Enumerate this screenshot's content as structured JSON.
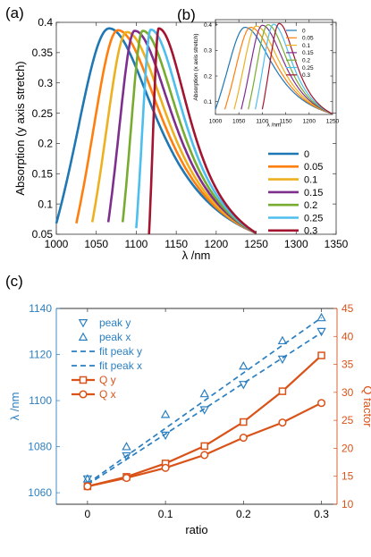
{
  "chart_data": [
    {
      "id": "a",
      "panel_label": "(a)",
      "type": "line",
      "title": "",
      "xlabel": "λ /nm",
      "ylabel": "Absorption (y axis stretch)",
      "xlim": [
        1000,
        1350
      ],
      "ylim": [
        0.05,
        0.4
      ],
      "xticks": [
        1000,
        1050,
        1100,
        1150,
        1200,
        1250,
        1300,
        1350
      ],
      "yticks": [
        0.05,
        0.1,
        0.15,
        0.2,
        0.25,
        0.3,
        0.35,
        0.4
      ],
      "ytick_labels": [
        "0.05",
        "0.1",
        "0.15",
        "0.2",
        "0.25",
        "0.3",
        "0.35",
        "0.4"
      ],
      "legend_position": "right",
      "grid": false,
      "series": [
        {
          "name": "0",
          "color": "#1f77b4",
          "peak_x": 1066,
          "peak_y": 0.39,
          "start_x": 1000,
          "start_y": 0.068,
          "end_x": 1250,
          "end_y": 0.052
        },
        {
          "name": "0.05",
          "color": "#ff7f0e",
          "peak_x": 1077,
          "peak_y": 0.387,
          "start_x": 1025,
          "start_y": 0.068,
          "end_x": 1250,
          "end_y": 0.052
        },
        {
          "name": "0.1",
          "color": "#edb120",
          "peak_x": 1088,
          "peak_y": 0.384,
          "start_x": 1045,
          "start_y": 0.07,
          "end_x": 1250,
          "end_y": 0.052
        },
        {
          "name": "0.15",
          "color": "#7e2f8e",
          "peak_x": 1098,
          "peak_y": 0.386,
          "start_x": 1065,
          "start_y": 0.07,
          "end_x": 1250,
          "end_y": 0.052
        },
        {
          "name": "0.2",
          "color": "#77ac30",
          "peak_x": 1108,
          "peak_y": 0.386,
          "start_x": 1083,
          "start_y": 0.07,
          "end_x": 1250,
          "end_y": 0.052
        },
        {
          "name": "0.25",
          "color": "#4dbeee",
          "peak_x": 1118,
          "peak_y": 0.388,
          "start_x": 1100,
          "start_y": 0.06,
          "end_x": 1250,
          "end_y": 0.052
        },
        {
          "name": "0.3",
          "color": "#a2142f",
          "peak_x": 1128,
          "peak_y": 0.39,
          "start_x": 1116,
          "start_y": 0.05,
          "end_x": 1250,
          "end_y": 0.052
        }
      ]
    },
    {
      "id": "b",
      "panel_label": "(b)",
      "type": "line",
      "title": "",
      "xlabel": "λ /nm",
      "ylabel": "Absorption (x axis stretch)",
      "xlim": [
        1000,
        1250
      ],
      "ylim": [
        0.05,
        0.42
      ],
      "xticks": [
        1000,
        1050,
        1100,
        1150,
        1200,
        1250
      ],
      "yticks": [
        0.1,
        0.2,
        0.3,
        0.4
      ],
      "ytick_labels": [
        "0.1",
        "0.2",
        "0.3",
        "0.4"
      ],
      "legend_position": "right",
      "grid": false,
      "series": [
        {
          "name": "0",
          "color": "#1f77b4",
          "peak_x": 1063,
          "peak_y": 0.39,
          "start_x": 1000,
          "start_y": 0.07,
          "end_x": 1250,
          "end_y": 0.052
        },
        {
          "name": "0.05",
          "color": "#ff7f0e",
          "peak_x": 1075,
          "peak_y": 0.39,
          "start_x": 1020,
          "start_y": 0.07,
          "end_x": 1250,
          "end_y": 0.052
        },
        {
          "name": "0.1",
          "color": "#edb120",
          "peak_x": 1087,
          "peak_y": 0.395,
          "start_x": 1040,
          "start_y": 0.07,
          "end_x": 1250,
          "end_y": 0.052
        },
        {
          "name": "0.15",
          "color": "#7e2f8e",
          "peak_x": 1100,
          "peak_y": 0.398,
          "start_x": 1055,
          "start_y": 0.07,
          "end_x": 1250,
          "end_y": 0.052
        },
        {
          "name": "0.2",
          "color": "#77ac30",
          "peak_x": 1112,
          "peak_y": 0.4,
          "start_x": 1070,
          "start_y": 0.07,
          "end_x": 1250,
          "end_y": 0.052
        },
        {
          "name": "0.25",
          "color": "#4dbeee",
          "peak_x": 1124,
          "peak_y": 0.402,
          "start_x": 1085,
          "start_y": 0.07,
          "end_x": 1250,
          "end_y": 0.052
        },
        {
          "name": "0.3",
          "color": "#a2142f",
          "peak_x": 1136,
          "peak_y": 0.405,
          "start_x": 1100,
          "start_y": 0.07,
          "end_x": 1250,
          "end_y": 0.052
        }
      ]
    },
    {
      "id": "c",
      "panel_label": "(c)",
      "type": "line",
      "title": "",
      "xlabel": "ratio",
      "ylabel": "λ /nm",
      "y2label": "Q factor",
      "xlim": [
        -0.04,
        0.32
      ],
      "ylim": [
        1055,
        1140
      ],
      "y2lim": [
        10,
        45
      ],
      "xticks": [
        0,
        0.1,
        0.2,
        0.3
      ],
      "yticks": [
        1060,
        1080,
        1100,
        1120,
        1140
      ],
      "y2ticks": [
        10,
        15,
        20,
        25,
        30,
        35,
        40,
        45
      ],
      "left_axis_color": "#2b7fc1",
      "right_axis_color": "#d95319",
      "legend_position": "top-left",
      "grid": false,
      "x": [
        0,
        0.05,
        0.1,
        0.15,
        0.2,
        0.25,
        0.3
      ],
      "series": [
        {
          "name": "peak y",
          "axis": "left",
          "style": "marker-down-triangle",
          "color": "#2b7fc1",
          "values": [
            1066,
            1076,
            1085,
            1096,
            1107,
            1118,
            1130
          ]
        },
        {
          "name": "peak x",
          "axis": "left",
          "style": "marker-up-triangle",
          "color": "#2b7fc1",
          "values": [
            1066,
            1080,
            1094,
            1103,
            1115,
            1126,
            1136
          ]
        },
        {
          "name": "fit peak y",
          "axis": "left",
          "style": "dashed",
          "color": "#2b7fc1",
          "values": [
            1063.5,
            1074.5,
            1085.5,
            1096.5,
            1107.5,
            1118.5,
            1129.5
          ]
        },
        {
          "name": "fit peak x",
          "axis": "left",
          "style": "dashed",
          "color": "#2b7fc1",
          "values": [
            1064,
            1076,
            1088,
            1100,
            1112,
            1124,
            1136
          ]
        },
        {
          "name": "Q y",
          "axis": "right",
          "style": "line-square",
          "color": "#d95319",
          "values": [
            13.2,
            14.9,
            17.3,
            20.4,
            24.7,
            30.2,
            36.6
          ]
        },
        {
          "name": "Q x",
          "axis": "right",
          "style": "line-circle",
          "color": "#d95319",
          "values": [
            13.2,
            14.7,
            16.5,
            18.8,
            21.9,
            24.6,
            28.1
          ]
        }
      ]
    }
  ]
}
